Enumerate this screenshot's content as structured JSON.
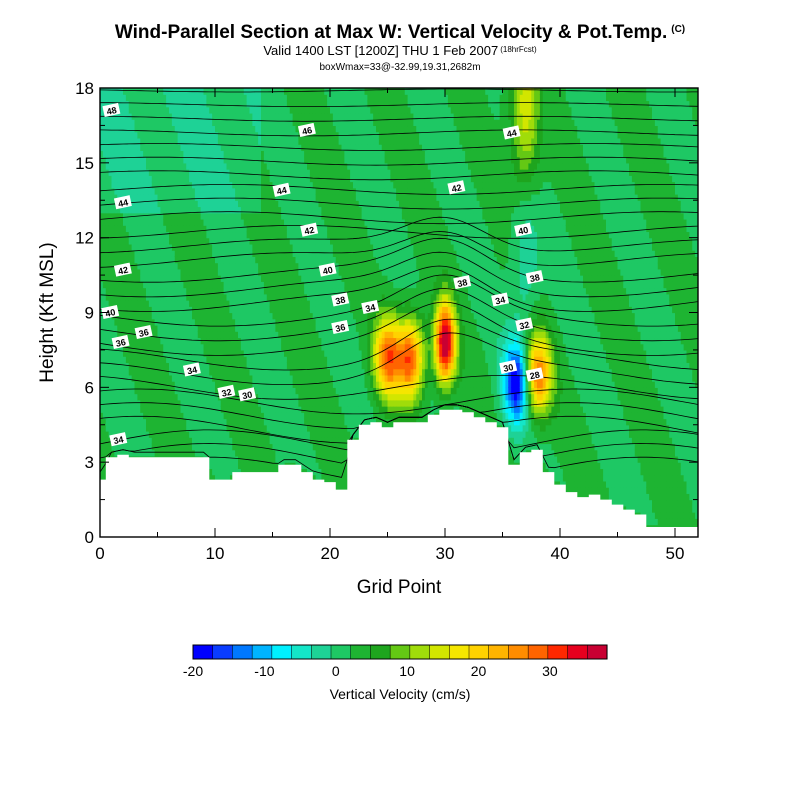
{
  "title": {
    "main": "Wind-Parallel Section at Max W: Vertical Velocity & Pot.Temp.",
    "main_tag": "(C)",
    "valid": "Valid 1400 LST [1200Z] THU 1 Feb 2007",
    "valid_tag": "(18hrFcst)",
    "box": "boxWmax=33@-32.99,19.31,2682m"
  },
  "chart_data": {
    "type": "heatmap",
    "title": "Wind-Parallel Section at Max W: Vertical Velocity & Pot.Temp.",
    "xlabel": "Grid Point",
    "ylabel": "Height (Kft MSL)",
    "xlim": [
      0,
      52
    ],
    "ylim": [
      0,
      18
    ],
    "x_ticks": [
      0,
      10,
      20,
      30,
      40,
      50
    ],
    "y_ticks": [
      0,
      3,
      6,
      9,
      12,
      15,
      18
    ],
    "colorbar": {
      "label": "Vertical Velocity (cm/s)",
      "min": -20,
      "max": 38,
      "step": 2.5,
      "tick_labels": [
        -20,
        -10,
        0,
        10,
        20,
        30
      ],
      "colors": [
        "#0000ff",
        "#0a3cff",
        "#0078ff",
        "#00b4ff",
        "#00f0ff",
        "#14e6c8",
        "#1ed296",
        "#1ec864",
        "#1eb432",
        "#1ea51e",
        "#64c814",
        "#a0dc0a",
        "#d2e600",
        "#f5e600",
        "#ffd200",
        "#ffb400",
        "#ff8c00",
        "#ff6400",
        "#ff2800",
        "#e6001e",
        "#c80032"
      ]
    },
    "terrain_profile": {
      "x": [
        0,
        1,
        2,
        3,
        4,
        5,
        6,
        7,
        8,
        9,
        10,
        11,
        12,
        13,
        14,
        15,
        16,
        17,
        18,
        19,
        20,
        21,
        22,
        23,
        24,
        25,
        26,
        27,
        28,
        29,
        30,
        31,
        32,
        33,
        34,
        35,
        36,
        37,
        38,
        39,
        40,
        41,
        42,
        43,
        44,
        45,
        46,
        47,
        48,
        49,
        50,
        51,
        52
      ],
      "height_kft": [
        2.3,
        3.2,
        3.3,
        3.2,
        3.2,
        3.2,
        3.2,
        3.2,
        3.2,
        3.2,
        2.3,
        2.3,
        2.6,
        2.6,
        2.6,
        2.6,
        2.9,
        2.9,
        2.6,
        2.3,
        2.2,
        1.9,
        3.9,
        4.5,
        4.6,
        4.4,
        4.6,
        4.6,
        4.6,
        4.9,
        5.1,
        5.1,
        5.0,
        4.8,
        4.6,
        4.4,
        2.9,
        3.4,
        3.5,
        2.6,
        2.1,
        1.8,
        1.6,
        1.7,
        1.5,
        1.3,
        1.1,
        0.9,
        0.4,
        0.4,
        0.4,
        0.4,
        0.4
      ]
    },
    "vertical_velocity_features": [
      {
        "x": 30,
        "z": 7.8,
        "value": 33,
        "label": "max updraft"
      },
      {
        "x": 25,
        "z": 7.2,
        "value": 22,
        "label": "updraft"
      },
      {
        "x": 27,
        "z": 7.2,
        "value": 24,
        "label": "updraft"
      },
      {
        "x": 38,
        "z": 6.5,
        "value": 24,
        "label": "updraft"
      },
      {
        "x": 37,
        "z": 16.5,
        "value": 14,
        "label": "upper updraft"
      },
      {
        "x": 36.3,
        "z": 6.2,
        "value": -20,
        "label": "downdraft"
      },
      {
        "x": 37,
        "z": 12.5,
        "value": -8,
        "label": "upper downdraft"
      }
    ],
    "theta_contours": [
      30,
      32,
      34,
      36,
      38,
      40,
      42,
      44,
      46,
      48
    ],
    "theta_labels": [
      {
        "text": "48",
        "x": 1.0,
        "z": 17.1
      },
      {
        "text": "46",
        "x": 18.0,
        "z": 16.3
      },
      {
        "text": "44",
        "x": 35.8,
        "z": 16.2
      },
      {
        "text": "44",
        "x": 2.0,
        "z": 13.4
      },
      {
        "text": "44",
        "x": 15.8,
        "z": 13.9
      },
      {
        "text": "42",
        "x": 31.0,
        "z": 14.0
      },
      {
        "text": "42",
        "x": 18.2,
        "z": 12.3
      },
      {
        "text": "40",
        "x": 36.8,
        "z": 12.3
      },
      {
        "text": "42",
        "x": 2.0,
        "z": 10.7
      },
      {
        "text": "40",
        "x": 19.8,
        "z": 10.7
      },
      {
        "text": "38",
        "x": 31.5,
        "z": 10.2
      },
      {
        "text": "38",
        "x": 37.8,
        "z": 10.4
      },
      {
        "text": "38",
        "x": 20.9,
        "z": 9.5
      },
      {
        "text": "34",
        "x": 23.5,
        "z": 9.2
      },
      {
        "text": "34",
        "x": 34.8,
        "z": 9.5
      },
      {
        "text": "40",
        "x": 0.9,
        "z": 9.0
      },
      {
        "text": "36",
        "x": 3.8,
        "z": 8.2
      },
      {
        "text": "36",
        "x": 20.9,
        "z": 8.4
      },
      {
        "text": "32",
        "x": 36.9,
        "z": 8.5
      },
      {
        "text": "36",
        "x": 1.8,
        "z": 7.8
      },
      {
        "text": "34",
        "x": 8.0,
        "z": 6.7
      },
      {
        "text": "30",
        "x": 35.5,
        "z": 6.8
      },
      {
        "text": "28",
        "x": 37.8,
        "z": 6.5
      },
      {
        "text": "32",
        "x": 11.0,
        "z": 5.8
      },
      {
        "text": "30",
        "x": 12.8,
        "z": 5.7
      },
      {
        "text": "34",
        "x": 1.6,
        "z": 3.9
      }
    ]
  }
}
